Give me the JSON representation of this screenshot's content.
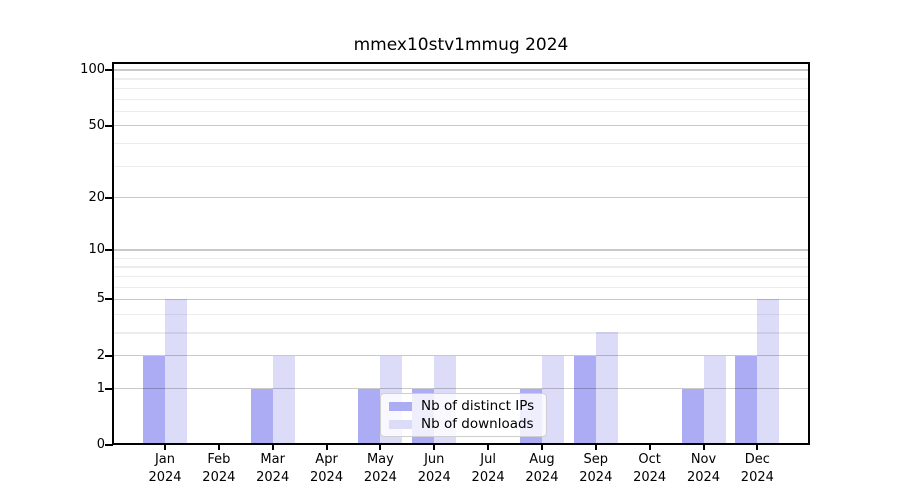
{
  "title": "mmex10stv1mmug 2024",
  "legend": {
    "items": [
      {
        "label": "Nb of distinct IPs",
        "color": "#acacf4"
      },
      {
        "label": "Nb of downloads",
        "color": "#dcdcf8"
      }
    ]
  },
  "chart_data": {
    "type": "bar",
    "title": "mmex10stv1mmug 2024",
    "categories": [
      "Jan",
      "Feb",
      "Mar",
      "Apr",
      "May",
      "Jun",
      "Jul",
      "Aug",
      "Sep",
      "Oct",
      "Nov",
      "Dec"
    ],
    "category_year": "2024",
    "series": [
      {
        "name": "Nb of distinct IPs",
        "color": "#acacf4",
        "values": [
          2,
          0,
          1,
          0,
          1,
          1,
          0,
          1,
          2,
          0,
          1,
          2
        ]
      },
      {
        "name": "Nb of downloads",
        "color": "#dcdcf8",
        "values": [
          5,
          0,
          2,
          0,
          2,
          2,
          0,
          2,
          3,
          0,
          2,
          5
        ]
      }
    ],
    "yscale": "log1p",
    "ylim": [
      0,
      110
    ],
    "yticks": [
      0,
      1,
      2,
      5,
      10,
      20,
      50,
      100
    ],
    "yticks_minor": [
      3,
      4,
      6,
      7,
      8,
      9,
      30,
      40,
      60,
      70,
      80,
      90
    ],
    "xlabel": "",
    "ylabel": "",
    "grid": true,
    "legend_position": "lower center"
  }
}
